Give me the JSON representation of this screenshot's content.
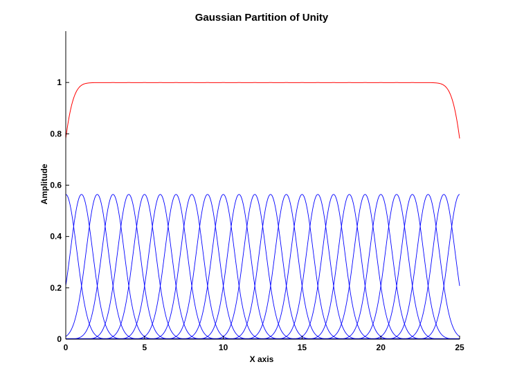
{
  "chart_data": {
    "type": "line",
    "title": "Gaussian Partition of Unity",
    "xlabel": "X axis",
    "ylabel": "Amplitude",
    "xlim": [
      0,
      25
    ],
    "ylim": [
      0,
      1.2
    ],
    "xticks": [
      0,
      5,
      10,
      15,
      20,
      25
    ],
    "xtick_labels": [
      "0",
      "5",
      "10",
      "15",
      "20",
      "25"
    ],
    "yticks": [
      0,
      0.2,
      0.4,
      0.6,
      0.8,
      1
    ],
    "ytick_labels": [
      "0",
      "0.2",
      "0.4",
      "0.6",
      "0.8",
      "1"
    ],
    "grid": false,
    "legend": "none",
    "gaussian_centers": [
      0,
      1,
      2,
      3,
      4,
      5,
      6,
      7,
      8,
      9,
      10,
      11,
      12,
      13,
      14,
      15,
      16,
      17,
      18,
      19,
      20,
      21,
      22,
      23,
      24,
      25
    ],
    "gaussian_peak": 0.564,
    "gaussian_sigma": 0.707,
    "series": [
      {
        "type": "gaussian-basis-functions",
        "color": "#0000ff"
      },
      {
        "type": "sum-of-gaussians",
        "color": "#ff0000"
      }
    ]
  }
}
